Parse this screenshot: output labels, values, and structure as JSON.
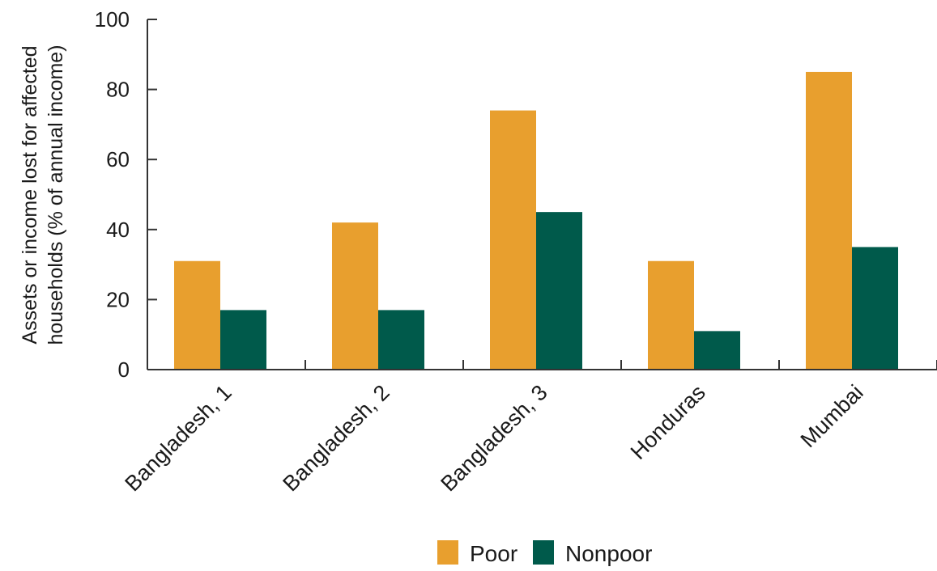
{
  "chart_data": {
    "type": "bar",
    "categories": [
      "Bangladesh, 1",
      "Bangladesh, 2",
      "Bangladesh, 3",
      "Honduras",
      "Mumbai"
    ],
    "series": [
      {
        "name": "Poor",
        "values": [
          31,
          42,
          74,
          31,
          85
        ]
      },
      {
        "name": "Nonpoor",
        "values": [
          17,
          17,
          45,
          11,
          35
        ]
      }
    ],
    "title": "",
    "xlabel": "",
    "ylabel": [
      "Assets or income lost for affected",
      "households (% of annual income)"
    ],
    "ylim": [
      0,
      100
    ],
    "yticks": [
      "0",
      "20",
      "40",
      "60",
      "80",
      "100"
    ],
    "grid": false,
    "legend_position": "bottom-center",
    "colors": {
      "Poor": "#E89F2E",
      "Nonpoor": "#005A4B",
      "axis": "#333333"
    }
  }
}
